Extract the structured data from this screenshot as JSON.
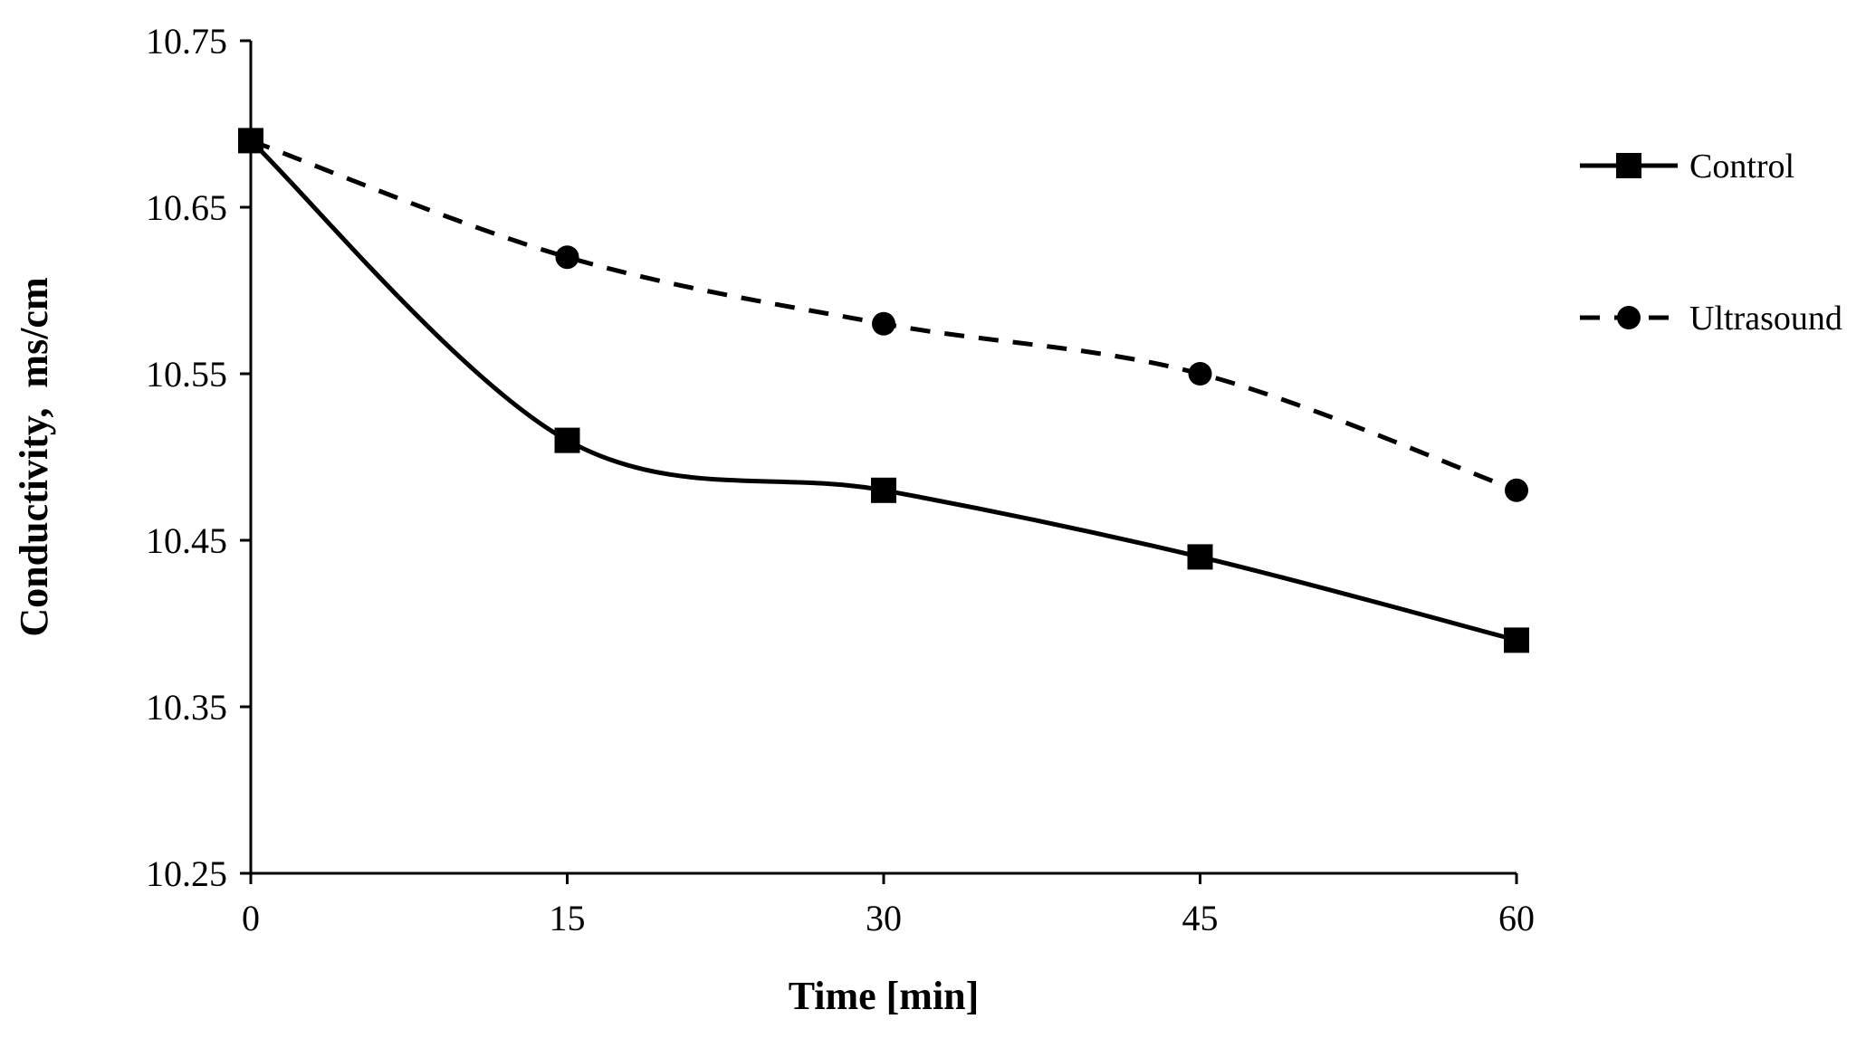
{
  "chart_data": {
    "type": "line",
    "title": "",
    "xlabel": "Time [min]",
    "ylabel": "Conductivity,  ms/cm",
    "x": [
      0,
      15,
      30,
      45,
      60
    ],
    "xlim": [
      0,
      60
    ],
    "ylim": [
      10.25,
      10.75
    ],
    "xticks": [
      "0",
      "15",
      "30",
      "45",
      "60"
    ],
    "yticks": [
      "10.25",
      "10.35",
      "10.45",
      "10.55",
      "10.65",
      "10.75"
    ],
    "grid": false,
    "legend_position": "right",
    "series": [
      {
        "name": "Control",
        "values": [
          10.69,
          10.51,
          10.48,
          10.44,
          10.39
        ],
        "marker": "square",
        "line_style": "solid",
        "color": "#000000"
      },
      {
        "name": "Ultrasound",
        "values": [
          10.69,
          10.62,
          10.58,
          10.55,
          10.48
        ],
        "marker": "circle",
        "line_style": "dashed",
        "color": "#000000"
      }
    ]
  }
}
